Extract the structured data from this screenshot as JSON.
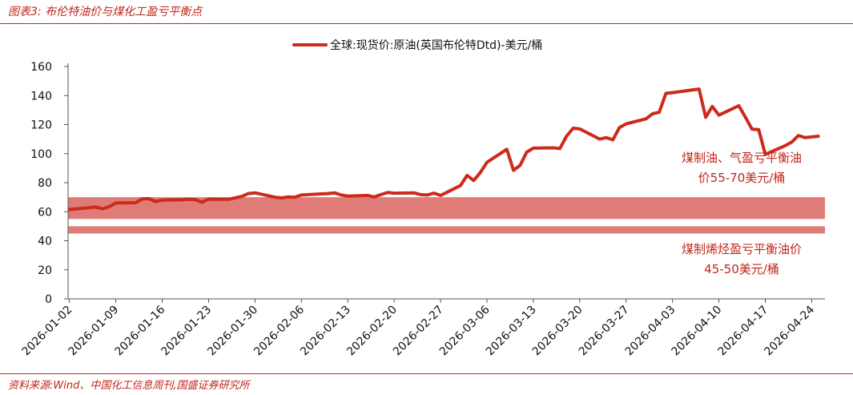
{
  "page": {
    "title": "图表3:  布伦特油价与煤化工盈亏平衡点",
    "source": "资料来源:Wind、中国化工信息周刊,国盛证券研究所"
  },
  "colors": {
    "accent": "#c0261a",
    "series": "#cc2a1a",
    "band": "#e07c78"
  },
  "chart_data": {
    "type": "line",
    "title": "",
    "xlabel": "",
    "ylabel": "",
    "ylim": [
      0,
      160
    ],
    "yticks": [
      0,
      20,
      40,
      60,
      80,
      100,
      120,
      140,
      160
    ],
    "grid": false,
    "legend_position": "top-center",
    "xticks": [
      "2026-01-02",
      "2026-01-09",
      "2026-01-16",
      "2026-01-23",
      "2026-01-30",
      "2026-02-06",
      "2026-02-13",
      "2026-02-20",
      "2026-02-27",
      "2026-03-06",
      "2026-03-13",
      "2026-03-20",
      "2026-03-27",
      "2026-04-03",
      "2026-04-10",
      "2026-04-17",
      "2026-04-24"
    ],
    "series": [
      {
        "name": "全球:现货价:原油(英国布伦特Dtd)-美元/桶",
        "points": [
          [
            "2026-01-02",
            61.5
          ],
          [
            "2026-01-05",
            62.8
          ],
          [
            "2026-01-06",
            63.2
          ],
          [
            "2026-01-07",
            62.0
          ],
          [
            "2026-01-08",
            63.5
          ],
          [
            "2026-01-09",
            66.0
          ],
          [
            "2026-01-12",
            66.2
          ],
          [
            "2026-01-13",
            68.8
          ],
          [
            "2026-01-14",
            69.0
          ],
          [
            "2026-01-15",
            67.0
          ],
          [
            "2026-01-16",
            68.0
          ],
          [
            "2026-01-19",
            68.2
          ],
          [
            "2026-01-20",
            68.5
          ],
          [
            "2026-01-21",
            68.3
          ],
          [
            "2026-01-22",
            66.5
          ],
          [
            "2026-01-23",
            68.7
          ],
          [
            "2026-01-26",
            68.5
          ],
          [
            "2026-01-27",
            69.5
          ],
          [
            "2026-01-28",
            70.5
          ],
          [
            "2026-01-29",
            72.5
          ],
          [
            "2026-01-30",
            73.0
          ],
          [
            "2026-02-02",
            70.0
          ],
          [
            "2026-02-03",
            69.5
          ],
          [
            "2026-02-04",
            70.2
          ],
          [
            "2026-02-05",
            70.0
          ],
          [
            "2026-02-06",
            71.5
          ],
          [
            "2026-02-09",
            72.3
          ],
          [
            "2026-02-10",
            72.5
          ],
          [
            "2026-02-11",
            73.0
          ],
          [
            "2026-02-12",
            71.5
          ],
          [
            "2026-02-13",
            70.8
          ],
          [
            "2026-02-16",
            71.2
          ],
          [
            "2026-02-17",
            70.2
          ],
          [
            "2026-02-18",
            71.8
          ],
          [
            "2026-02-19",
            73.2
          ],
          [
            "2026-02-20",
            72.8
          ],
          [
            "2026-02-23",
            73.0
          ],
          [
            "2026-02-24",
            71.8
          ],
          [
            "2026-02-25",
            71.5
          ],
          [
            "2026-02-26",
            72.8
          ],
          [
            "2026-02-27",
            71.2
          ],
          [
            "2026-03-02",
            78.0
          ],
          [
            "2026-03-03",
            85.0
          ],
          [
            "2026-03-04",
            81.5
          ],
          [
            "2026-03-05",
            87.0
          ],
          [
            "2026-03-06",
            94.0
          ],
          [
            "2026-03-09",
            103.0
          ],
          [
            "2026-03-10",
            88.5
          ],
          [
            "2026-03-11",
            92.0
          ],
          [
            "2026-03-12",
            101.0
          ],
          [
            "2026-03-13",
            103.8
          ],
          [
            "2026-03-16",
            104.0
          ],
          [
            "2026-03-17",
            103.5
          ],
          [
            "2026-03-18",
            112.0
          ],
          [
            "2026-03-19",
            117.5
          ],
          [
            "2026-03-20",
            117.0
          ],
          [
            "2026-03-23",
            110.0
          ],
          [
            "2026-03-24",
            111.0
          ],
          [
            "2026-03-25",
            109.5
          ],
          [
            "2026-03-26",
            118.0
          ],
          [
            "2026-03-27",
            120.5
          ],
          [
            "2026-03-30",
            124.0
          ],
          [
            "2026-03-31",
            127.5
          ],
          [
            "2026-04-01",
            128.5
          ],
          [
            "2026-04-02",
            141.5
          ],
          [
            "2026-04-03",
            142.0
          ],
          [
            "2026-04-07",
            144.5
          ],
          [
            "2026-04-08",
            125.0
          ],
          [
            "2026-04-09",
            132.5
          ],
          [
            "2026-04-10",
            126.5
          ],
          [
            "2026-04-13",
            133.0
          ],
          [
            "2026-04-14",
            125.0
          ],
          [
            "2026-04-15",
            116.8
          ],
          [
            "2026-04-16",
            116.5
          ],
          [
            "2026-04-17",
            99.5
          ],
          [
            "2026-04-20",
            105.5
          ],
          [
            "2026-04-21",
            108.0
          ],
          [
            "2026-04-22",
            112.5
          ],
          [
            "2026-04-23",
            111.0
          ],
          [
            "2026-04-24",
            111.5
          ],
          [
            "2026-04-25",
            112.0
          ]
        ]
      }
    ],
    "bands": [
      {
        "y_from": 55,
        "y_to": 70,
        "label_lines": [
          "煤制油、气盈亏平衡油",
          "价55-70美元/桶"
        ]
      },
      {
        "y_from": 45,
        "y_to": 50,
        "label_lines": [
          "煤制烯烃盈亏平衡油价",
          "45-50美元/桶"
        ]
      }
    ]
  }
}
